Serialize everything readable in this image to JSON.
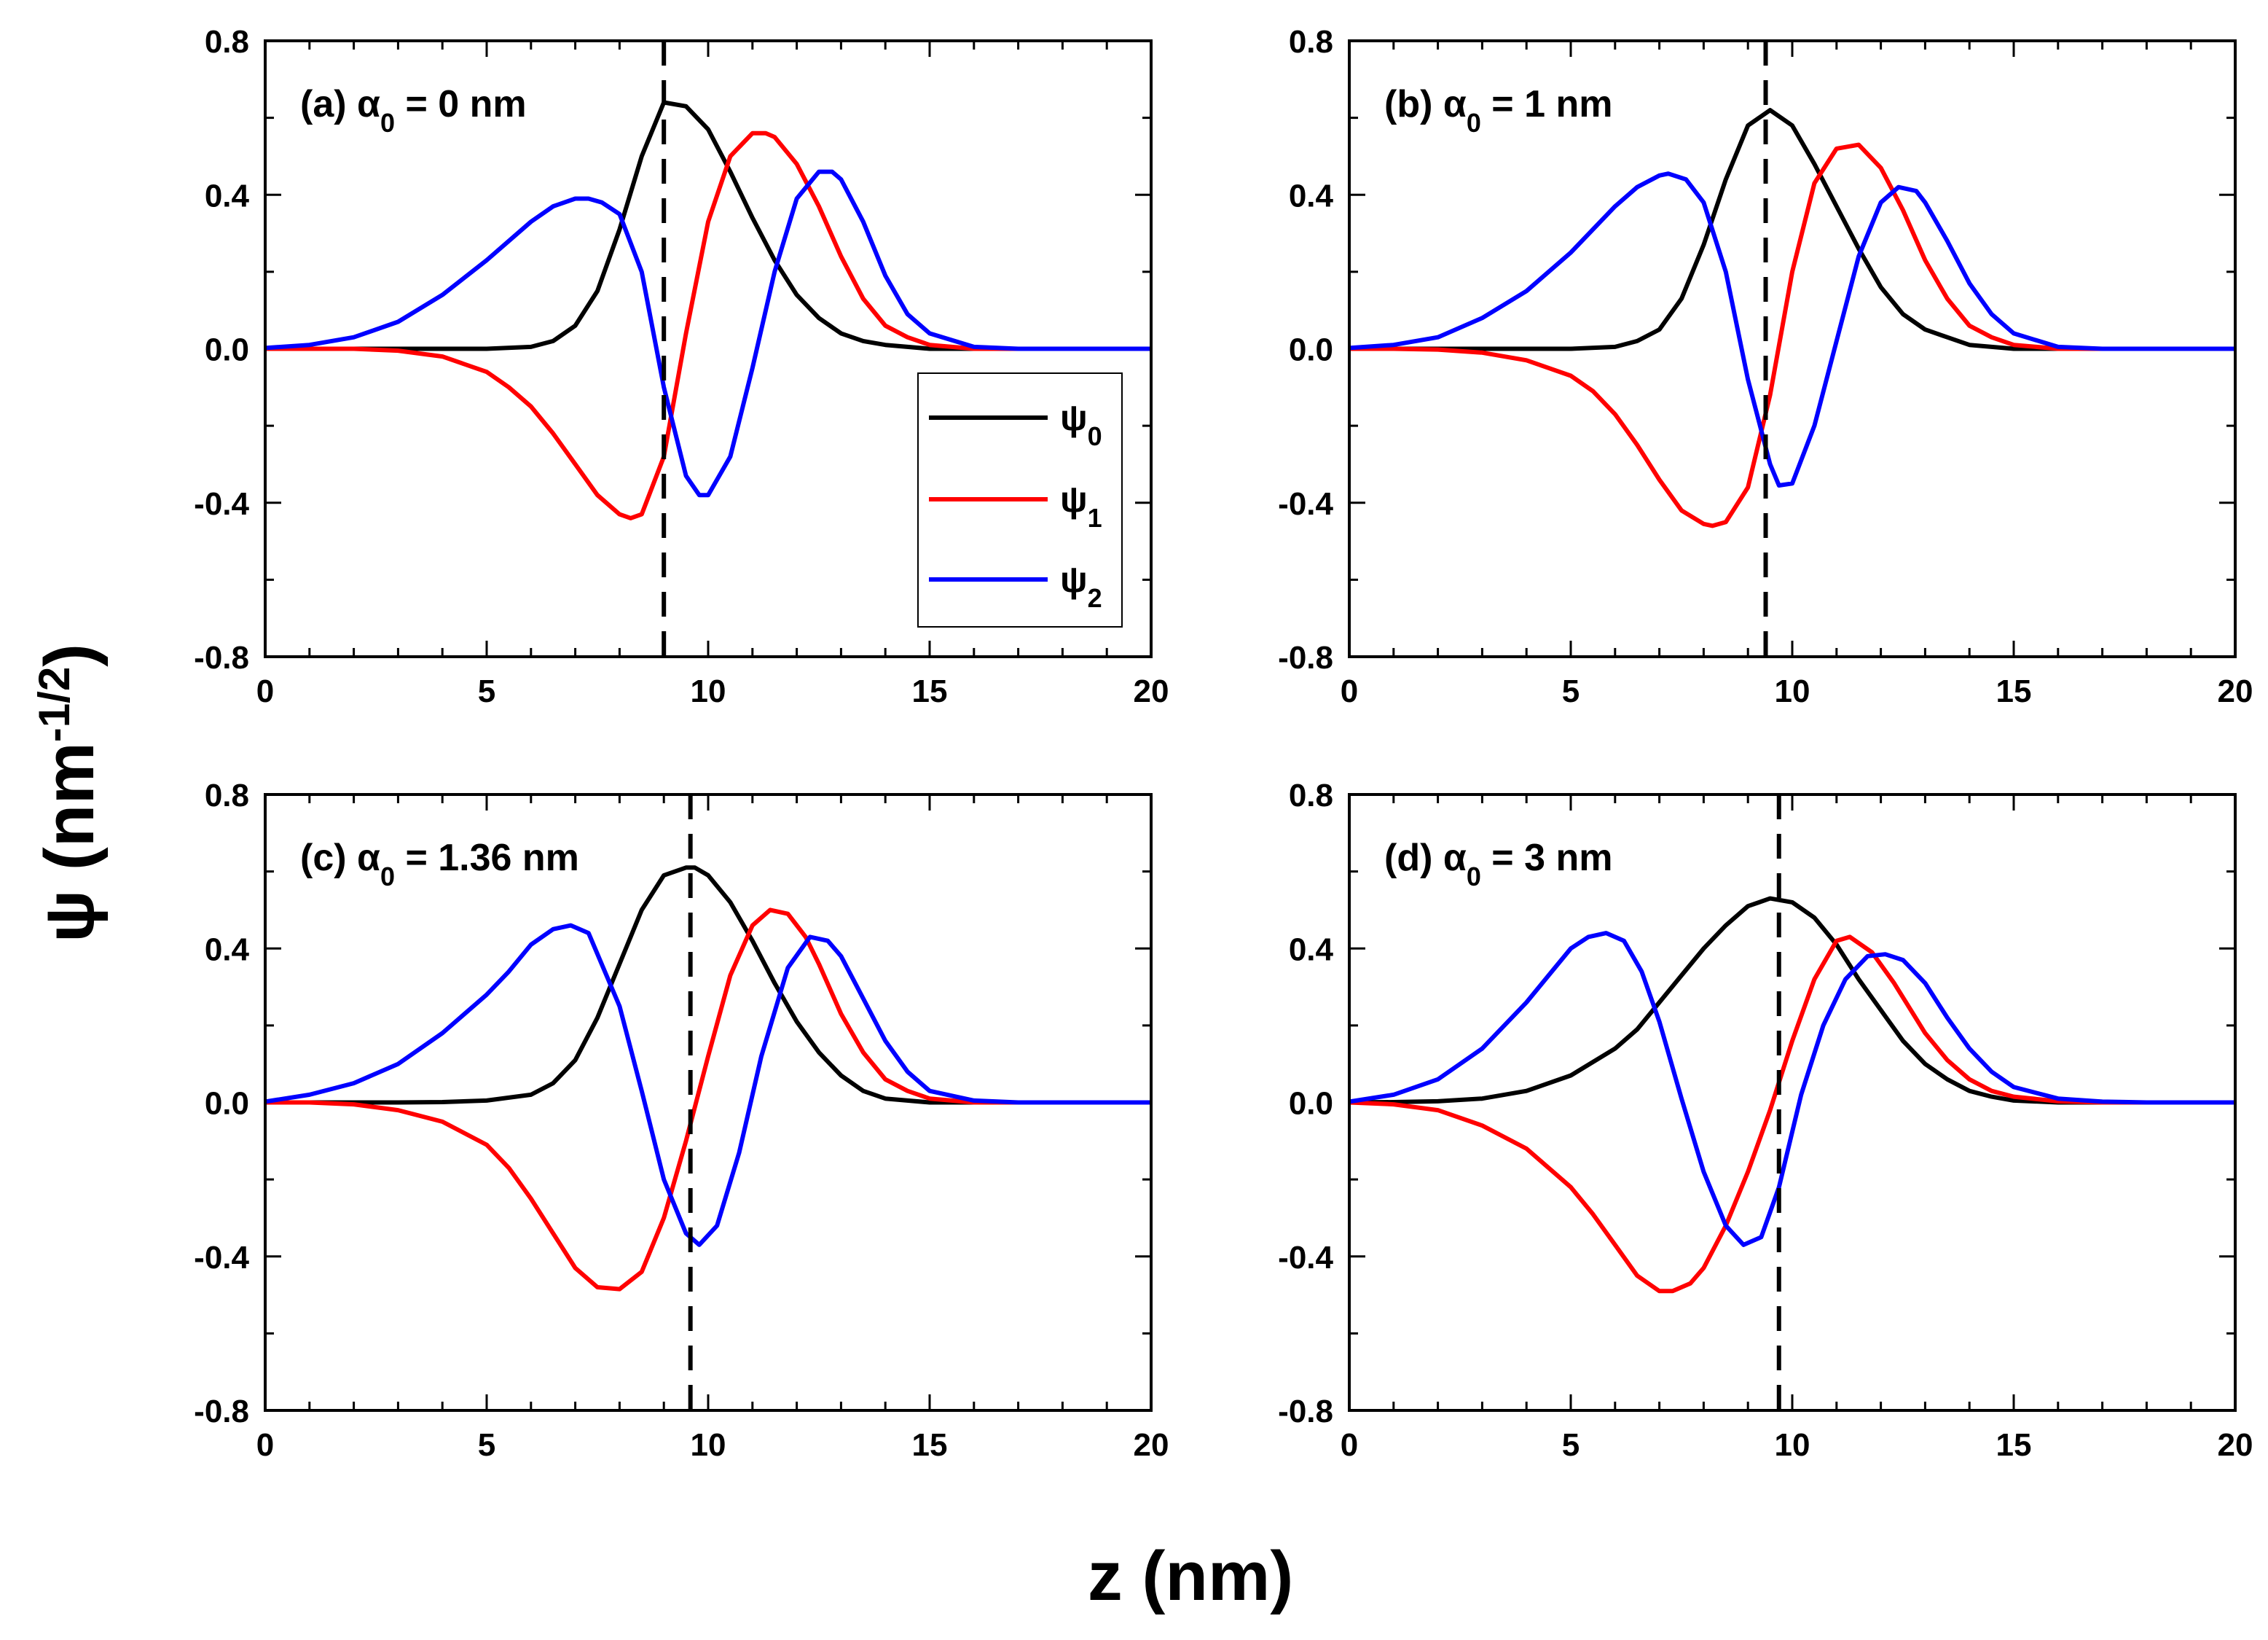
{
  "figure": {
    "xlabel": "z (nm)",
    "ylabel_main": "ψ (nm",
    "ylabel_sup": "-1/2",
    "ylabel_close": ")"
  },
  "legend": [
    {
      "symbol": "ψ",
      "sub": "0",
      "color": "#000000"
    },
    {
      "symbol": "ψ",
      "sub": "1",
      "color": "#ff0000"
    },
    {
      "symbol": "ψ",
      "sub": "2",
      "color": "#0000ff"
    }
  ],
  "colors": {
    "psi0": "#000000",
    "psi1": "#ff0000",
    "psi2": "#0000ff",
    "dashed": "#000000"
  },
  "chart_data": [
    {
      "type": "line",
      "label_prefix": "(a) ",
      "label_symbol": "α",
      "label_sub": "0",
      "label_suffix": " = 0 nm",
      "xlim": [
        0,
        20
      ],
      "ylim": [
        -0.8,
        0.8
      ],
      "xticks": [
        0,
        5,
        10,
        15,
        20
      ],
      "yticks": [
        0.8,
        0.4,
        0.0,
        -0.4,
        -0.8
      ],
      "xtick_labels": [
        "0",
        "5",
        "10",
        "15",
        "20"
      ],
      "ytick_labels": [
        "0.8",
        "0.4",
        "0.0",
        "-0.4",
        "-0.8"
      ],
      "dashed_x": 9.0,
      "series": [
        {
          "name": "ψ0",
          "color": "#000000",
          "x": [
            0,
            1,
            2,
            3,
            4,
            5,
            6,
            6.5,
            7,
            7.5,
            8,
            8.5,
            9,
            9.5,
            10,
            10.5,
            11,
            11.5,
            12,
            12.5,
            13,
            13.5,
            14,
            15,
            16,
            17,
            18,
            19,
            20
          ],
          "y": [
            0,
            0,
            0,
            0,
            0,
            0,
            0.005,
            0.02,
            0.06,
            0.15,
            0.31,
            0.5,
            0.64,
            0.63,
            0.57,
            0.46,
            0.34,
            0.23,
            0.14,
            0.08,
            0.04,
            0.02,
            0.01,
            0,
            0,
            0,
            0,
            0,
            0
          ]
        },
        {
          "name": "ψ1",
          "color": "#ff0000",
          "x": [
            0,
            1,
            2,
            3,
            4,
            5,
            5.5,
            6,
            6.5,
            7,
            7.5,
            8,
            8.25,
            8.5,
            9,
            9.5,
            10,
            10.5,
            11,
            11.3,
            11.5,
            12,
            12.5,
            13,
            13.5,
            14,
            14.5,
            15,
            16,
            17,
            18,
            19,
            20
          ],
          "y": [
            0,
            0,
            0,
            -0.005,
            -0.02,
            -0.06,
            -0.1,
            -0.15,
            -0.22,
            -0.3,
            -0.38,
            -0.43,
            -0.44,
            -0.43,
            -0.28,
            0.04,
            0.33,
            0.5,
            0.56,
            0.56,
            0.55,
            0.48,
            0.37,
            0.24,
            0.13,
            0.06,
            0.03,
            0.01,
            0,
            0,
            0,
            0,
            0
          ]
        },
        {
          "name": "ψ2",
          "color": "#0000ff",
          "x": [
            0,
            1,
            2,
            3,
            4,
            5,
            6,
            6.5,
            7,
            7.3,
            7.6,
            8,
            8.5,
            9,
            9.5,
            9.8,
            10,
            10.5,
            11,
            11.5,
            12,
            12.5,
            12.8,
            13,
            13.5,
            14,
            14.5,
            15,
            16,
            17,
            18,
            19,
            20
          ],
          "y": [
            0.002,
            0.01,
            0.03,
            0.07,
            0.14,
            0.23,
            0.33,
            0.37,
            0.39,
            0.39,
            0.38,
            0.35,
            0.2,
            -0.1,
            -0.33,
            -0.38,
            -0.38,
            -0.28,
            -0.05,
            0.2,
            0.39,
            0.46,
            0.46,
            0.44,
            0.33,
            0.19,
            0.09,
            0.04,
            0.005,
            0,
            0,
            0,
            0
          ]
        }
      ]
    },
    {
      "type": "line",
      "label_prefix": "(b) ",
      "label_symbol": "α",
      "label_sub": "0",
      "label_suffix": " = 1 nm",
      "xlim": [
        0,
        20
      ],
      "ylim": [
        -0.8,
        0.8
      ],
      "xticks": [
        0,
        5,
        10,
        15,
        20
      ],
      "yticks": [
        0.8,
        0.4,
        0.0,
        -0.4,
        -0.8
      ],
      "xtick_labels": [
        "0",
        "5",
        "10",
        "15",
        "20"
      ],
      "ytick_labels": [
        "0.8",
        "0.4",
        "0.0",
        "-0.4",
        "-0.8"
      ],
      "dashed_x": 9.4,
      "series": [
        {
          "name": "ψ0",
          "color": "#000000",
          "x": [
            0,
            1,
            2,
            3,
            4,
            5,
            6,
            6.5,
            7,
            7.5,
            8,
            8.5,
            9,
            9.5,
            10,
            10.5,
            11,
            11.5,
            12,
            12.5,
            13,
            13.5,
            14,
            15,
            16,
            17,
            18,
            19,
            20
          ],
          "y": [
            0,
            0,
            0,
            0,
            0,
            0,
            0.005,
            0.02,
            0.05,
            0.13,
            0.27,
            0.44,
            0.58,
            0.62,
            0.58,
            0.48,
            0.37,
            0.26,
            0.16,
            0.09,
            0.05,
            0.03,
            0.01,
            0,
            0,
            0,
            0,
            0,
            0
          ]
        },
        {
          "name": "ψ1",
          "color": "#ff0000",
          "x": [
            0,
            1,
            2,
            3,
            4,
            5,
            5.5,
            6,
            6.5,
            7,
            7.5,
            8,
            8.2,
            8.5,
            9,
            9.5,
            10,
            10.5,
            11,
            11.5,
            12,
            12.5,
            13,
            13.5,
            14,
            14.5,
            15,
            16,
            17,
            18,
            19,
            20
          ],
          "y": [
            0,
            0,
            -0.002,
            -0.01,
            -0.03,
            -0.07,
            -0.11,
            -0.17,
            -0.25,
            -0.34,
            -0.42,
            -0.455,
            -0.46,
            -0.45,
            -0.36,
            -0.12,
            0.2,
            0.43,
            0.52,
            0.53,
            0.47,
            0.36,
            0.23,
            0.13,
            0.06,
            0.03,
            0.01,
            0,
            0,
            0,
            0,
            0
          ]
        },
        {
          "name": "ψ2",
          "color": "#0000ff",
          "x": [
            0,
            1,
            2,
            3,
            4,
            5,
            6,
            6.5,
            7,
            7.2,
            7.6,
            8,
            8.5,
            9,
            9.5,
            9.7,
            10,
            10.5,
            11,
            11.5,
            12,
            12.4,
            12.8,
            13,
            13.5,
            14,
            14.5,
            15,
            16,
            17,
            18,
            19,
            20
          ],
          "y": [
            0.002,
            0.01,
            0.03,
            0.08,
            0.15,
            0.25,
            0.37,
            0.42,
            0.45,
            0.455,
            0.44,
            0.38,
            0.2,
            -0.08,
            -0.3,
            -0.355,
            -0.35,
            -0.2,
            0.02,
            0.24,
            0.38,
            0.42,
            0.41,
            0.38,
            0.28,
            0.17,
            0.09,
            0.04,
            0.005,
            0,
            0,
            0,
            0
          ]
        }
      ]
    },
    {
      "type": "line",
      "label_prefix": "(c) ",
      "label_symbol": "α",
      "label_sub": "0",
      "label_suffix": " = 1.36 nm",
      "xlim": [
        0,
        20
      ],
      "ylim": [
        -0.8,
        0.8
      ],
      "xticks": [
        0,
        5,
        10,
        15,
        20
      ],
      "yticks": [
        0.8,
        0.4,
        0.0,
        -0.4,
        -0.8
      ],
      "xtick_labels": [
        "0",
        "5",
        "10",
        "15",
        "20"
      ],
      "ytick_labels": [
        "0.8",
        "0.4",
        "0.0",
        "-0.4",
        "-0.8"
      ],
      "dashed_x": 9.6,
      "series": [
        {
          "name": "ψ0",
          "color": "#000000",
          "x": [
            0,
            1,
            2,
            3,
            4,
            5,
            6,
            6.5,
            7,
            7.5,
            8,
            8.5,
            9,
            9.5,
            9.7,
            10,
            10.5,
            11,
            11.5,
            12,
            12.5,
            13,
            13.5,
            14,
            15,
            16,
            17,
            18,
            19,
            20
          ],
          "y": [
            0,
            0,
            0,
            0,
            0.001,
            0.005,
            0.02,
            0.05,
            0.11,
            0.22,
            0.36,
            0.5,
            0.59,
            0.61,
            0.61,
            0.59,
            0.52,
            0.42,
            0.31,
            0.21,
            0.13,
            0.07,
            0.03,
            0.01,
            0,
            0,
            0,
            0,
            0,
            0
          ]
        },
        {
          "name": "ψ1",
          "color": "#ff0000",
          "x": [
            0,
            1,
            2,
            3,
            4,
            5,
            5.5,
            6,
            6.5,
            7,
            7.5,
            8,
            8.5,
            9,
            9.5,
            10,
            10.5,
            11,
            11.4,
            11.8,
            12.2,
            12.5,
            13,
            13.5,
            14,
            14.5,
            15,
            16,
            17,
            18,
            19,
            20
          ],
          "y": [
            0,
            0,
            -0.005,
            -0.02,
            -0.05,
            -0.11,
            -0.17,
            -0.25,
            -0.34,
            -0.43,
            -0.48,
            -0.485,
            -0.44,
            -0.3,
            -0.1,
            0.12,
            0.33,
            0.46,
            0.5,
            0.49,
            0.43,
            0.36,
            0.23,
            0.13,
            0.06,
            0.03,
            0.01,
            0,
            0,
            0,
            0,
            0
          ]
        },
        {
          "name": "ψ2",
          "color": "#0000ff",
          "x": [
            0,
            1,
            2,
            3,
            4,
            5,
            5.5,
            6,
            6.5,
            6.9,
            7.3,
            8,
            8.5,
            9,
            9.5,
            9.8,
            10.2,
            10.7,
            11.2,
            11.8,
            12.3,
            12.7,
            13,
            13.5,
            14,
            14.5,
            15,
            16,
            17,
            18,
            19,
            20
          ],
          "y": [
            0.002,
            0.02,
            0.05,
            0.1,
            0.18,
            0.28,
            0.34,
            0.41,
            0.45,
            0.46,
            0.44,
            0.25,
            0.03,
            -0.2,
            -0.34,
            -0.37,
            -0.32,
            -0.13,
            0.12,
            0.35,
            0.43,
            0.42,
            0.38,
            0.27,
            0.16,
            0.08,
            0.03,
            0.005,
            0,
            0,
            0,
            0
          ]
        }
      ]
    },
    {
      "type": "line",
      "label_prefix": "(d) ",
      "label_symbol": "α",
      "label_sub": "0",
      "label_suffix": " = 3 nm",
      "xlim": [
        0,
        20
      ],
      "ylim": [
        -0.8,
        0.8
      ],
      "xticks": [
        0,
        5,
        10,
        15,
        20
      ],
      "yticks": [
        0.8,
        0.4,
        0.0,
        -0.4,
        -0.8
      ],
      "xtick_labels": [
        "0",
        "5",
        "10",
        "15",
        "20"
      ],
      "ytick_labels": [
        "0.8",
        "0.4",
        "0.0",
        "-0.4",
        "-0.8"
      ],
      "dashed_x": 9.7,
      "series": [
        {
          "name": "ψ0",
          "color": "#000000",
          "x": [
            0,
            1,
            2,
            3,
            4,
            5,
            6,
            6.5,
            7,
            7.5,
            8,
            8.5,
            9,
            9.5,
            10,
            10.5,
            11,
            11.5,
            12,
            12.5,
            13,
            13.5,
            14,
            14.5,
            15,
            16,
            17,
            18,
            19,
            20
          ],
          "y": [
            0,
            0.001,
            0.003,
            0.01,
            0.03,
            0.07,
            0.14,
            0.19,
            0.26,
            0.33,
            0.4,
            0.46,
            0.51,
            0.53,
            0.52,
            0.48,
            0.41,
            0.32,
            0.24,
            0.16,
            0.1,
            0.06,
            0.03,
            0.015,
            0.005,
            0,
            0,
            0,
            0,
            0
          ]
        },
        {
          "name": "ψ1",
          "color": "#ff0000",
          "x": [
            0,
            1,
            2,
            3,
            4,
            5,
            5.5,
            6,
            6.5,
            7,
            7.3,
            7.7,
            8,
            8.5,
            9,
            9.5,
            10,
            10.5,
            11,
            11.3,
            11.8,
            12.3,
            13,
            13.5,
            14,
            14.5,
            15,
            16,
            17,
            18,
            19,
            20
          ],
          "y": [
            0,
            -0.005,
            -0.02,
            -0.06,
            -0.12,
            -0.22,
            -0.29,
            -0.37,
            -0.45,
            -0.49,
            -0.49,
            -0.47,
            -0.43,
            -0.32,
            -0.18,
            -0.02,
            0.16,
            0.32,
            0.42,
            0.43,
            0.39,
            0.31,
            0.18,
            0.11,
            0.06,
            0.03,
            0.015,
            0.003,
            0,
            0,
            0,
            0
          ]
        },
        {
          "name": "ψ2",
          "color": "#0000ff",
          "x": [
            0,
            1,
            2,
            3,
            4,
            4.5,
            5,
            5.4,
            5.8,
            6.2,
            6.6,
            7,
            7.5,
            8,
            8.5,
            8.9,
            9.3,
            9.7,
            10.2,
            10.7,
            11.2,
            11.7,
            12.1,
            12.5,
            13,
            13.5,
            14,
            14.5,
            15,
            16,
            17,
            18,
            19,
            20
          ],
          "y": [
            0.002,
            0.02,
            0.06,
            0.14,
            0.26,
            0.33,
            0.4,
            0.43,
            0.44,
            0.42,
            0.34,
            0.21,
            0.01,
            -0.18,
            -0.32,
            -0.37,
            -0.35,
            -0.22,
            0.02,
            0.2,
            0.32,
            0.38,
            0.385,
            0.37,
            0.31,
            0.22,
            0.14,
            0.08,
            0.04,
            0.01,
            0.002,
            0,
            0,
            0
          ]
        }
      ]
    }
  ]
}
